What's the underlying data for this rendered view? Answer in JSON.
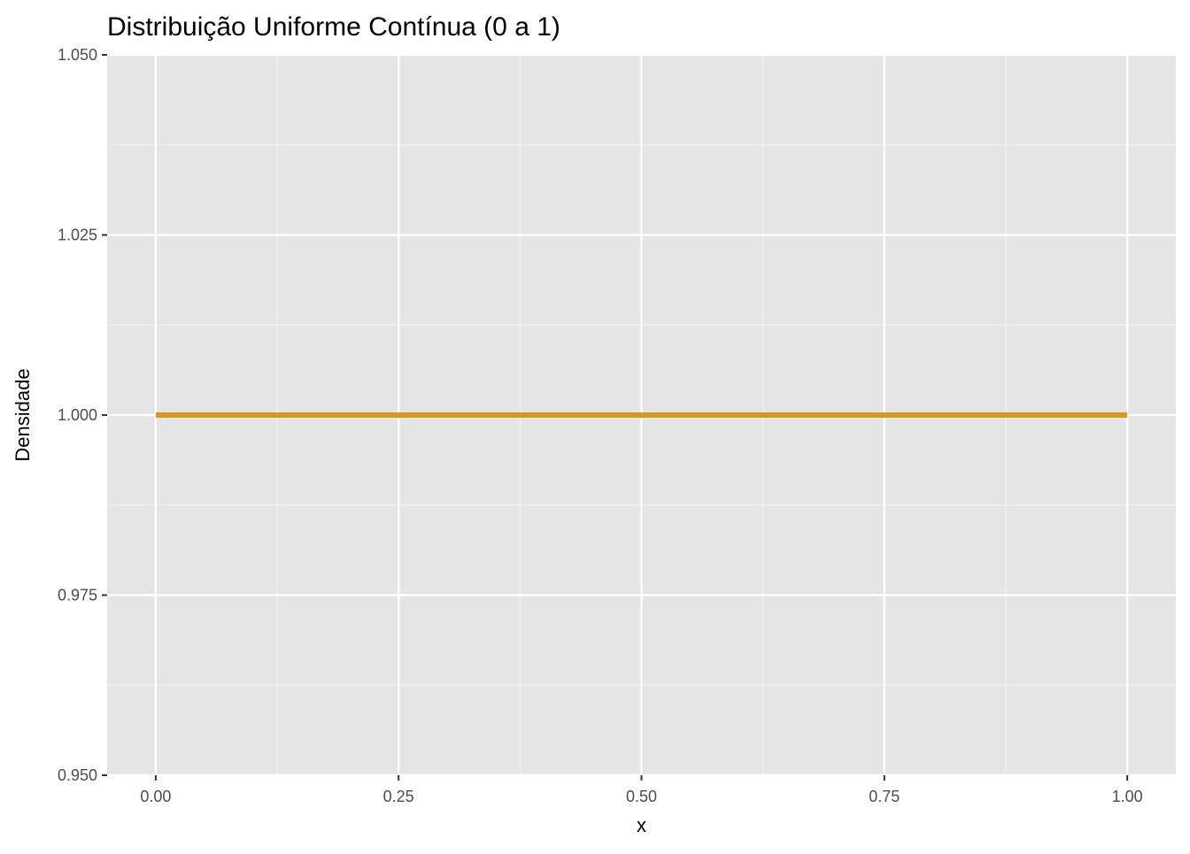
{
  "chart_data": {
    "type": "line",
    "title": "Distribuição Uniforme Contínua (0 a 1)",
    "xlabel": "x",
    "ylabel": "Densidade",
    "xlim": [
      -0.05,
      1.05
    ],
    "ylim": [
      0.95,
      1.05
    ],
    "x_ticks": [
      0.0,
      0.25,
      0.5,
      0.75,
      1.0
    ],
    "x_tick_labels": [
      "0.00",
      "0.25",
      "0.50",
      "0.75",
      "1.00"
    ],
    "y_ticks": [
      0.95,
      0.975,
      1.0,
      1.025,
      1.05
    ],
    "y_tick_labels": [
      "0.950",
      "0.975",
      "1.000",
      "1.025",
      "1.050"
    ],
    "grid": true,
    "legend": "none",
    "series": [
      {
        "color": "#d4991f",
        "x": [
          0.0,
          1.0
        ],
        "y": [
          1.0,
          1.0
        ]
      }
    ]
  }
}
